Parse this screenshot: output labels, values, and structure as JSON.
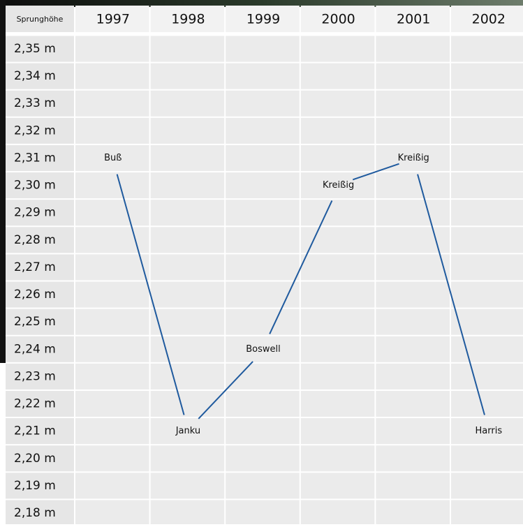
{
  "chart_data": {
    "type": "line",
    "y_label": "Sprunghöhe",
    "categories": [
      "1997",
      "1998",
      "1999",
      "2000",
      "2001",
      "2002"
    ],
    "values": [
      2.31,
      2.21,
      2.24,
      2.3,
      2.31,
      2.21
    ],
    "labels": [
      "Buß",
      "Janku",
      "Boswell",
      "Kreißig",
      "Kreißig",
      "Harris"
    ],
    "color": "#1f5a9e",
    "ylim": [
      2.35,
      2.18
    ],
    "yticks": [
      {
        "value": 2.35,
        "label": "2,35 m"
      },
      {
        "value": 2.34,
        "label": "2,34 m"
      },
      {
        "value": 2.33,
        "label": "2,33 m"
      },
      {
        "value": 2.32,
        "label": "2,32 m"
      },
      {
        "value": 2.31,
        "label": "2,31 m"
      },
      {
        "value": 2.3,
        "label": "2,30 m"
      },
      {
        "value": 2.29,
        "label": "2,29 m"
      },
      {
        "value": 2.28,
        "label": "2,28 m"
      },
      {
        "value": 2.27,
        "label": "2,27 m"
      },
      {
        "value": 2.26,
        "label": "2,26 m"
      },
      {
        "value": 2.25,
        "label": "2,25 m"
      },
      {
        "value": 2.24,
        "label": "2,24 m"
      },
      {
        "value": 2.23,
        "label": "2,23 m"
      },
      {
        "value": 2.22,
        "label": "2,22 m"
      },
      {
        "value": 2.21,
        "label": "2,21 m"
      },
      {
        "value": 2.2,
        "label": "2,20 m"
      },
      {
        "value": 2.19,
        "label": "2,19 m"
      },
      {
        "value": 2.18,
        "label": "2,18 m"
      }
    ]
  }
}
